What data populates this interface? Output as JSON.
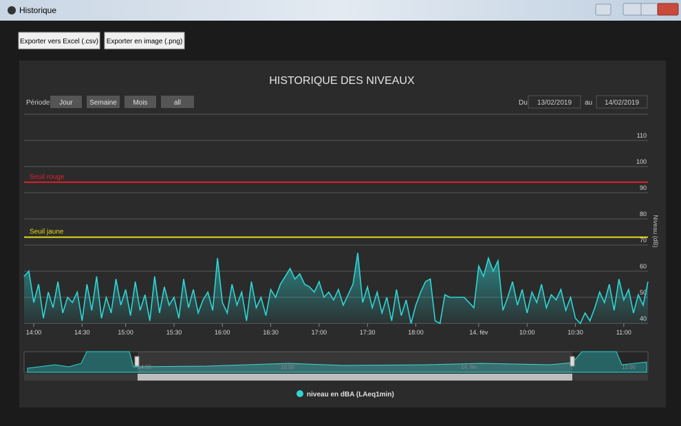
{
  "window": {
    "title": "Historique"
  },
  "toolbar": {
    "buttons": [
      "Exporter vers Excel (.csv)",
      "Exporter en image (.png)"
    ]
  },
  "chart_data": {
    "type": "line",
    "title": "HISTORIQUE DES NIVEAUX",
    "period_label": "Période",
    "periods": [
      "Jour",
      "Semaine",
      "Mois",
      "all"
    ],
    "range": {
      "from_label": "Du",
      "from": "13/02/2019",
      "to_label": "au",
      "to": "14/02/2019"
    },
    "ylabel": "Niveau (dB)",
    "ylim": [
      40,
      120
    ],
    "yticks": [
      40,
      50,
      60,
      70,
      80,
      90,
      100,
      110
    ],
    "xlim": [
      0,
      129
    ],
    "xticks": [
      {
        "value": 2,
        "label": "14:00"
      },
      {
        "value": 12,
        "label": "14:30"
      },
      {
        "value": 21,
        "label": "15:00"
      },
      {
        "value": 31,
        "label": "15:30"
      },
      {
        "value": 41,
        "label": "16:00"
      },
      {
        "value": 51,
        "label": "16:30"
      },
      {
        "value": 61,
        "label": "17:00"
      },
      {
        "value": 71,
        "label": "17:30"
      },
      {
        "value": 81,
        "label": "18:00"
      },
      {
        "value": 94,
        "label": "14. fév"
      },
      {
        "value": 104,
        "label": "10:00"
      },
      {
        "value": 114,
        "label": "10:30"
      },
      {
        "value": 124,
        "label": "11:00"
      }
    ],
    "grid": true,
    "legend": "bottom",
    "series": [
      {
        "name": "niveau en dBA (LAeq1min)",
        "color": "#2fd6d6",
        "values": [
          58,
          60,
          48,
          55,
          42,
          52,
          46,
          56,
          44,
          50,
          48,
          52,
          41,
          55,
          45,
          58,
          42,
          50,
          44,
          57,
          47,
          53,
          43,
          56,
          45,
          51,
          41,
          58,
          44,
          54,
          47,
          50,
          42,
          57,
          46,
          53,
          44,
          49,
          52,
          45,
          65,
          48,
          44,
          55,
          47,
          52,
          41,
          56,
          46,
          50,
          43,
          53,
          50,
          55,
          58,
          61,
          57,
          59,
          55,
          54,
          52,
          56,
          50,
          52,
          49,
          53,
          47,
          51,
          55,
          67,
          48,
          54,
          46,
          52,
          44,
          50,
          41,
          53,
          43,
          49,
          40,
          47,
          52,
          56,
          57,
          41,
          40,
          51,
          50,
          50,
          50,
          50,
          48,
          46,
          62,
          58,
          65,
          60,
          64,
          45,
          50,
          56,
          47,
          53,
          44,
          52,
          48,
          55,
          46,
          51,
          49,
          53,
          45,
          50,
          42,
          40,
          44,
          41,
          46,
          52,
          48,
          55,
          45,
          57,
          49,
          53,
          44,
          51,
          47,
          56
        ]
      }
    ],
    "plot_lines": [
      {
        "label": "Seuil rouge",
        "value": 94,
        "color": "#e0202a"
      },
      {
        "label": "Seuil jaune",
        "value": 73,
        "color": "#e5d81c"
      }
    ],
    "navigator": {
      "labels": [
        "14:00",
        "16:00",
        "14. fév",
        "12:00"
      ]
    }
  }
}
